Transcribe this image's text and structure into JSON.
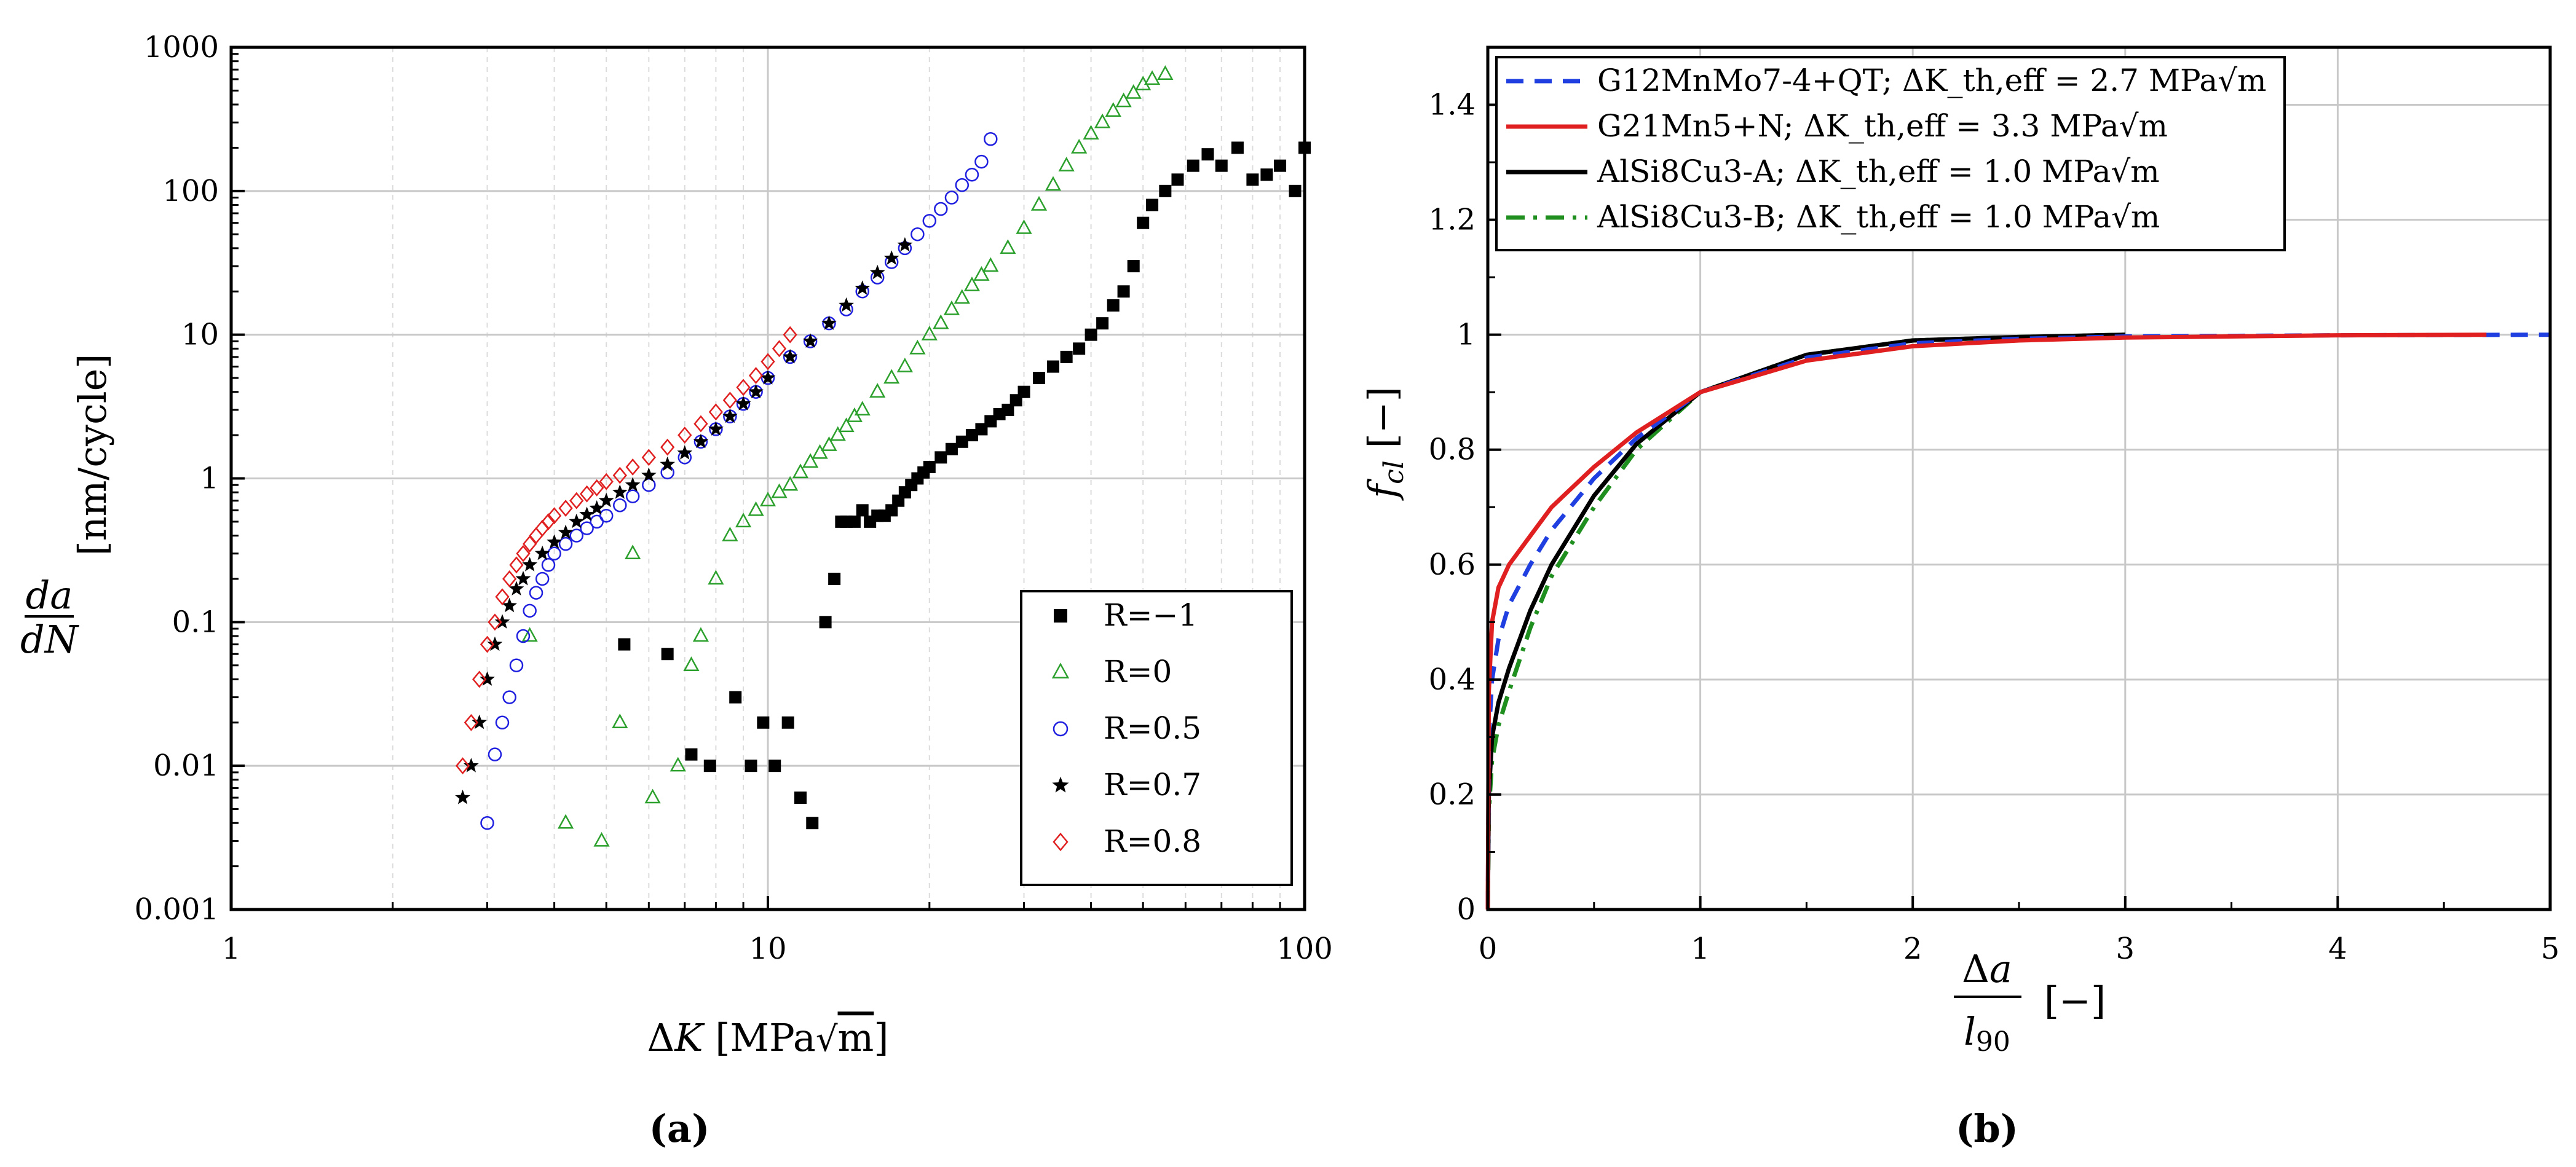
{
  "chart_data": [
    {
      "id": "a",
      "panel_label": "(a)",
      "type": "scatter",
      "xscale": "log",
      "yscale": "log",
      "xlim": [
        1,
        100
      ],
      "ylim": [
        0.001,
        1000
      ],
      "xlabel": "ΔK [MPa√m]",
      "ylabel": "da/dN [nm/cycle]",
      "x_ticks": [
        "1",
        "10",
        "100"
      ],
      "y_ticks": [
        "0.001",
        "0.01",
        "0.1",
        "1",
        "10",
        "100",
        "1000"
      ],
      "grid": true,
      "legend": "bottom-right",
      "series": [
        {
          "name": "R=−1",
          "marker": "square",
          "color": "#000000",
          "x": [
            5.4,
            6.5,
            7.2,
            7.8,
            8.7,
            9.3,
            9.8,
            10.3,
            10.9,
            11.5,
            12.1,
            12.8,
            13.3,
            13.7,
            14,
            14.5,
            15,
            15.5,
            16,
            16.5,
            17,
            17.5,
            18,
            18.5,
            19,
            19.5,
            20,
            21,
            22,
            23,
            24,
            25,
            26,
            27,
            28,
            29,
            30,
            32,
            34,
            36,
            38,
            40,
            42,
            44,
            46,
            48,
            50,
            52,
            55,
            58,
            62,
            66,
            70,
            75,
            80,
            85,
            90,
            96,
            100
          ],
          "y": [
            0.07,
            0.06,
            0.012,
            0.01,
            0.03,
            0.01,
            0.02,
            0.01,
            0.02,
            0.006,
            0.004,
            0.1,
            0.2,
            0.5,
            0.5,
            0.5,
            0.6,
            0.5,
            0.55,
            0.55,
            0.6,
            0.7,
            0.8,
            0.9,
            1,
            1.1,
            1.2,
            1.4,
            1.6,
            1.8,
            2,
            2.2,
            2.5,
            2.8,
            3,
            3.5,
            4,
            5,
            6,
            7,
            8,
            10,
            12,
            16,
            20,
            30,
            60,
            80,
            100,
            120,
            150,
            180,
            150,
            200,
            120,
            130,
            150,
            100,
            200
          ]
        },
        {
          "name": "R=0",
          "marker": "triangle",
          "color": "#2ca02c",
          "x": [
            3.6,
            4.2,
            4.9,
            5.3,
            5.6,
            6.1,
            6.8,
            7.2,
            7.5,
            8,
            8.5,
            9,
            9.5,
            10,
            10.5,
            11,
            11.5,
            12,
            12.5,
            13,
            13.5,
            14,
            14.5,
            15,
            16,
            17,
            18,
            19,
            20,
            21,
            22,
            23,
            24,
            25,
            26,
            28,
            30,
            32,
            34,
            36,
            38,
            40,
            42,
            44,
            46,
            48,
            50,
            52,
            55
          ],
          "y": [
            0.08,
            0.004,
            0.003,
            0.02,
            0.3,
            0.006,
            0.01,
            0.05,
            0.08,
            0.2,
            0.4,
            0.5,
            0.6,
            0.7,
            0.8,
            0.9,
            1.1,
            1.3,
            1.5,
            1.7,
            2,
            2.3,
            2.7,
            3,
            4,
            5,
            6,
            8,
            10,
            12,
            15,
            18,
            22,
            26,
            30,
            40,
            55,
            80,
            110,
            150,
            200,
            250,
            300,
            360,
            420,
            480,
            550,
            600,
            650
          ]
        },
        {
          "name": "R=0.5",
          "marker": "circle",
          "color": "#1f1fe0",
          "x": [
            3,
            3.1,
            3.2,
            3.3,
            3.4,
            3.5,
            3.6,
            3.7,
            3.8,
            3.9,
            4,
            4.2,
            4.4,
            4.6,
            4.8,
            5,
            5.3,
            5.6,
            6,
            6.5,
            7,
            7.5,
            8,
            8.5,
            9,
            9.5,
            10,
            11,
            12,
            13,
            14,
            15,
            16,
            17,
            18,
            19,
            20,
            21,
            22,
            23,
            24,
            25,
            26
          ],
          "y": [
            0.004,
            0.012,
            0.02,
            0.03,
            0.05,
            0.08,
            0.12,
            0.16,
            0.2,
            0.25,
            0.3,
            0.35,
            0.4,
            0.45,
            0.5,
            0.55,
            0.65,
            0.75,
            0.9,
            1.1,
            1.4,
            1.8,
            2.2,
            2.7,
            3.3,
            4,
            5,
            7,
            9,
            12,
            15,
            20,
            25,
            32,
            40,
            50,
            62,
            75,
            90,
            110,
            130,
            160,
            230
          ]
        },
        {
          "name": "R=0.7",
          "marker": "star",
          "color": "#000000",
          "x": [
            2.7,
            2.8,
            2.9,
            3,
            3.1,
            3.2,
            3.3,
            3.4,
            3.5,
            3.6,
            3.8,
            4,
            4.2,
            4.4,
            4.6,
            4.8,
            5,
            5.3,
            5.6,
            6,
            6.5,
            7,
            7.5,
            8,
            8.5,
            9,
            9.5,
            10,
            11,
            12,
            13,
            14,
            15,
            16,
            17,
            18
          ],
          "y": [
            0.006,
            0.01,
            0.02,
            0.04,
            0.07,
            0.1,
            0.13,
            0.17,
            0.2,
            0.25,
            0.3,
            0.36,
            0.42,
            0.5,
            0.56,
            0.62,
            0.7,
            0.8,
            0.9,
            1.05,
            1.25,
            1.5,
            1.8,
            2.2,
            2.7,
            3.3,
            4,
            5,
            7,
            9,
            12,
            16,
            21,
            27,
            34,
            42
          ]
        },
        {
          "name": "R=0.8",
          "marker": "diamond",
          "color": "#e02020",
          "x": [
            2.7,
            2.8,
            2.9,
            3,
            3.1,
            3.2,
            3.3,
            3.4,
            3.5,
            3.6,
            3.7,
            3.8,
            3.9,
            4,
            4.2,
            4.4,
            4.6,
            4.8,
            5,
            5.3,
            5.6,
            6,
            6.5,
            7,
            7.5,
            8,
            8.5,
            9,
            9.5,
            10,
            10.5,
            11
          ],
          "y": [
            0.01,
            0.02,
            0.04,
            0.07,
            0.1,
            0.15,
            0.2,
            0.25,
            0.3,
            0.35,
            0.4,
            0.45,
            0.5,
            0.55,
            0.62,
            0.7,
            0.78,
            0.86,
            0.95,
            1.05,
            1.2,
            1.4,
            1.65,
            2,
            2.4,
            2.9,
            3.5,
            4.3,
            5.2,
            6.5,
            8,
            10
          ]
        }
      ]
    },
    {
      "id": "b",
      "panel_label": "(b)",
      "type": "line",
      "xlim": [
        0,
        5
      ],
      "ylim": [
        0,
        1.5
      ],
      "x_ticks": [
        "0",
        "1",
        "2",
        "3",
        "4",
        "5"
      ],
      "y_ticks": [
        "0",
        "0.2",
        "0.4",
        "0.6",
        "0.8",
        "1",
        "1.2",
        "1.4"
      ],
      "xlabel": "Δa/l90 [−]",
      "ylabel": "f_cl [−]",
      "grid": true,
      "legend": "top-left",
      "series": [
        {
          "name": "G12MnMo7-4+QT",
          "threshold_label": "ΔK_th,eff = 2.7 MPa√m",
          "color": "#1f3fe0",
          "dash": "dashed",
          "x": [
            0,
            0.005,
            0.02,
            0.05,
            0.1,
            0.2,
            0.3,
            0.5,
            0.7,
            1,
            1.5,
            2,
            2.5,
            3,
            4,
            5
          ],
          "y": [
            0,
            0.3,
            0.4,
            0.47,
            0.53,
            0.6,
            0.66,
            0.75,
            0.82,
            0.9,
            0.96,
            0.985,
            0.993,
            0.997,
            0.999,
            1
          ]
        },
        {
          "name": "G21Mn5+N",
          "threshold_label": "ΔK_th,eff = 3.3 MPa√m",
          "color": "#e02020",
          "dash": "solid",
          "x": [
            0,
            0.005,
            0.02,
            0.05,
            0.1,
            0.2,
            0.3,
            0.5,
            0.7,
            1,
            1.5,
            2,
            2.5,
            3,
            4,
            4.7
          ],
          "y": [
            0,
            0.38,
            0.5,
            0.56,
            0.6,
            0.65,
            0.7,
            0.77,
            0.83,
            0.9,
            0.955,
            0.98,
            0.99,
            0.995,
            0.999,
            1
          ]
        },
        {
          "name": "AlSi8Cu3-A",
          "threshold_label": "ΔK_th,eff = 1.0 MPa√m",
          "color": "#000000",
          "dash": "solid",
          "x": [
            0,
            0.005,
            0.02,
            0.05,
            0.1,
            0.2,
            0.3,
            0.5,
            0.7,
            1,
            1.5,
            2,
            2.5,
            3
          ],
          "y": [
            0,
            0.2,
            0.3,
            0.36,
            0.42,
            0.52,
            0.6,
            0.72,
            0.81,
            0.9,
            0.965,
            0.99,
            0.996,
            1
          ]
        },
        {
          "name": "AlSi8Cu3-B",
          "threshold_label": "ΔK_th,eff = 1.0 MPa√m",
          "color": "#1f8f1f",
          "dash": "dashdot",
          "x": [
            0,
            0.005,
            0.02,
            0.05,
            0.1,
            0.2,
            0.3,
            0.5,
            0.7,
            1,
            1.5,
            2,
            2.5,
            3
          ],
          "y": [
            0,
            0.17,
            0.26,
            0.32,
            0.38,
            0.49,
            0.58,
            0.7,
            0.8,
            0.9,
            0.965,
            0.99,
            0.996,
            1
          ]
        }
      ]
    }
  ]
}
